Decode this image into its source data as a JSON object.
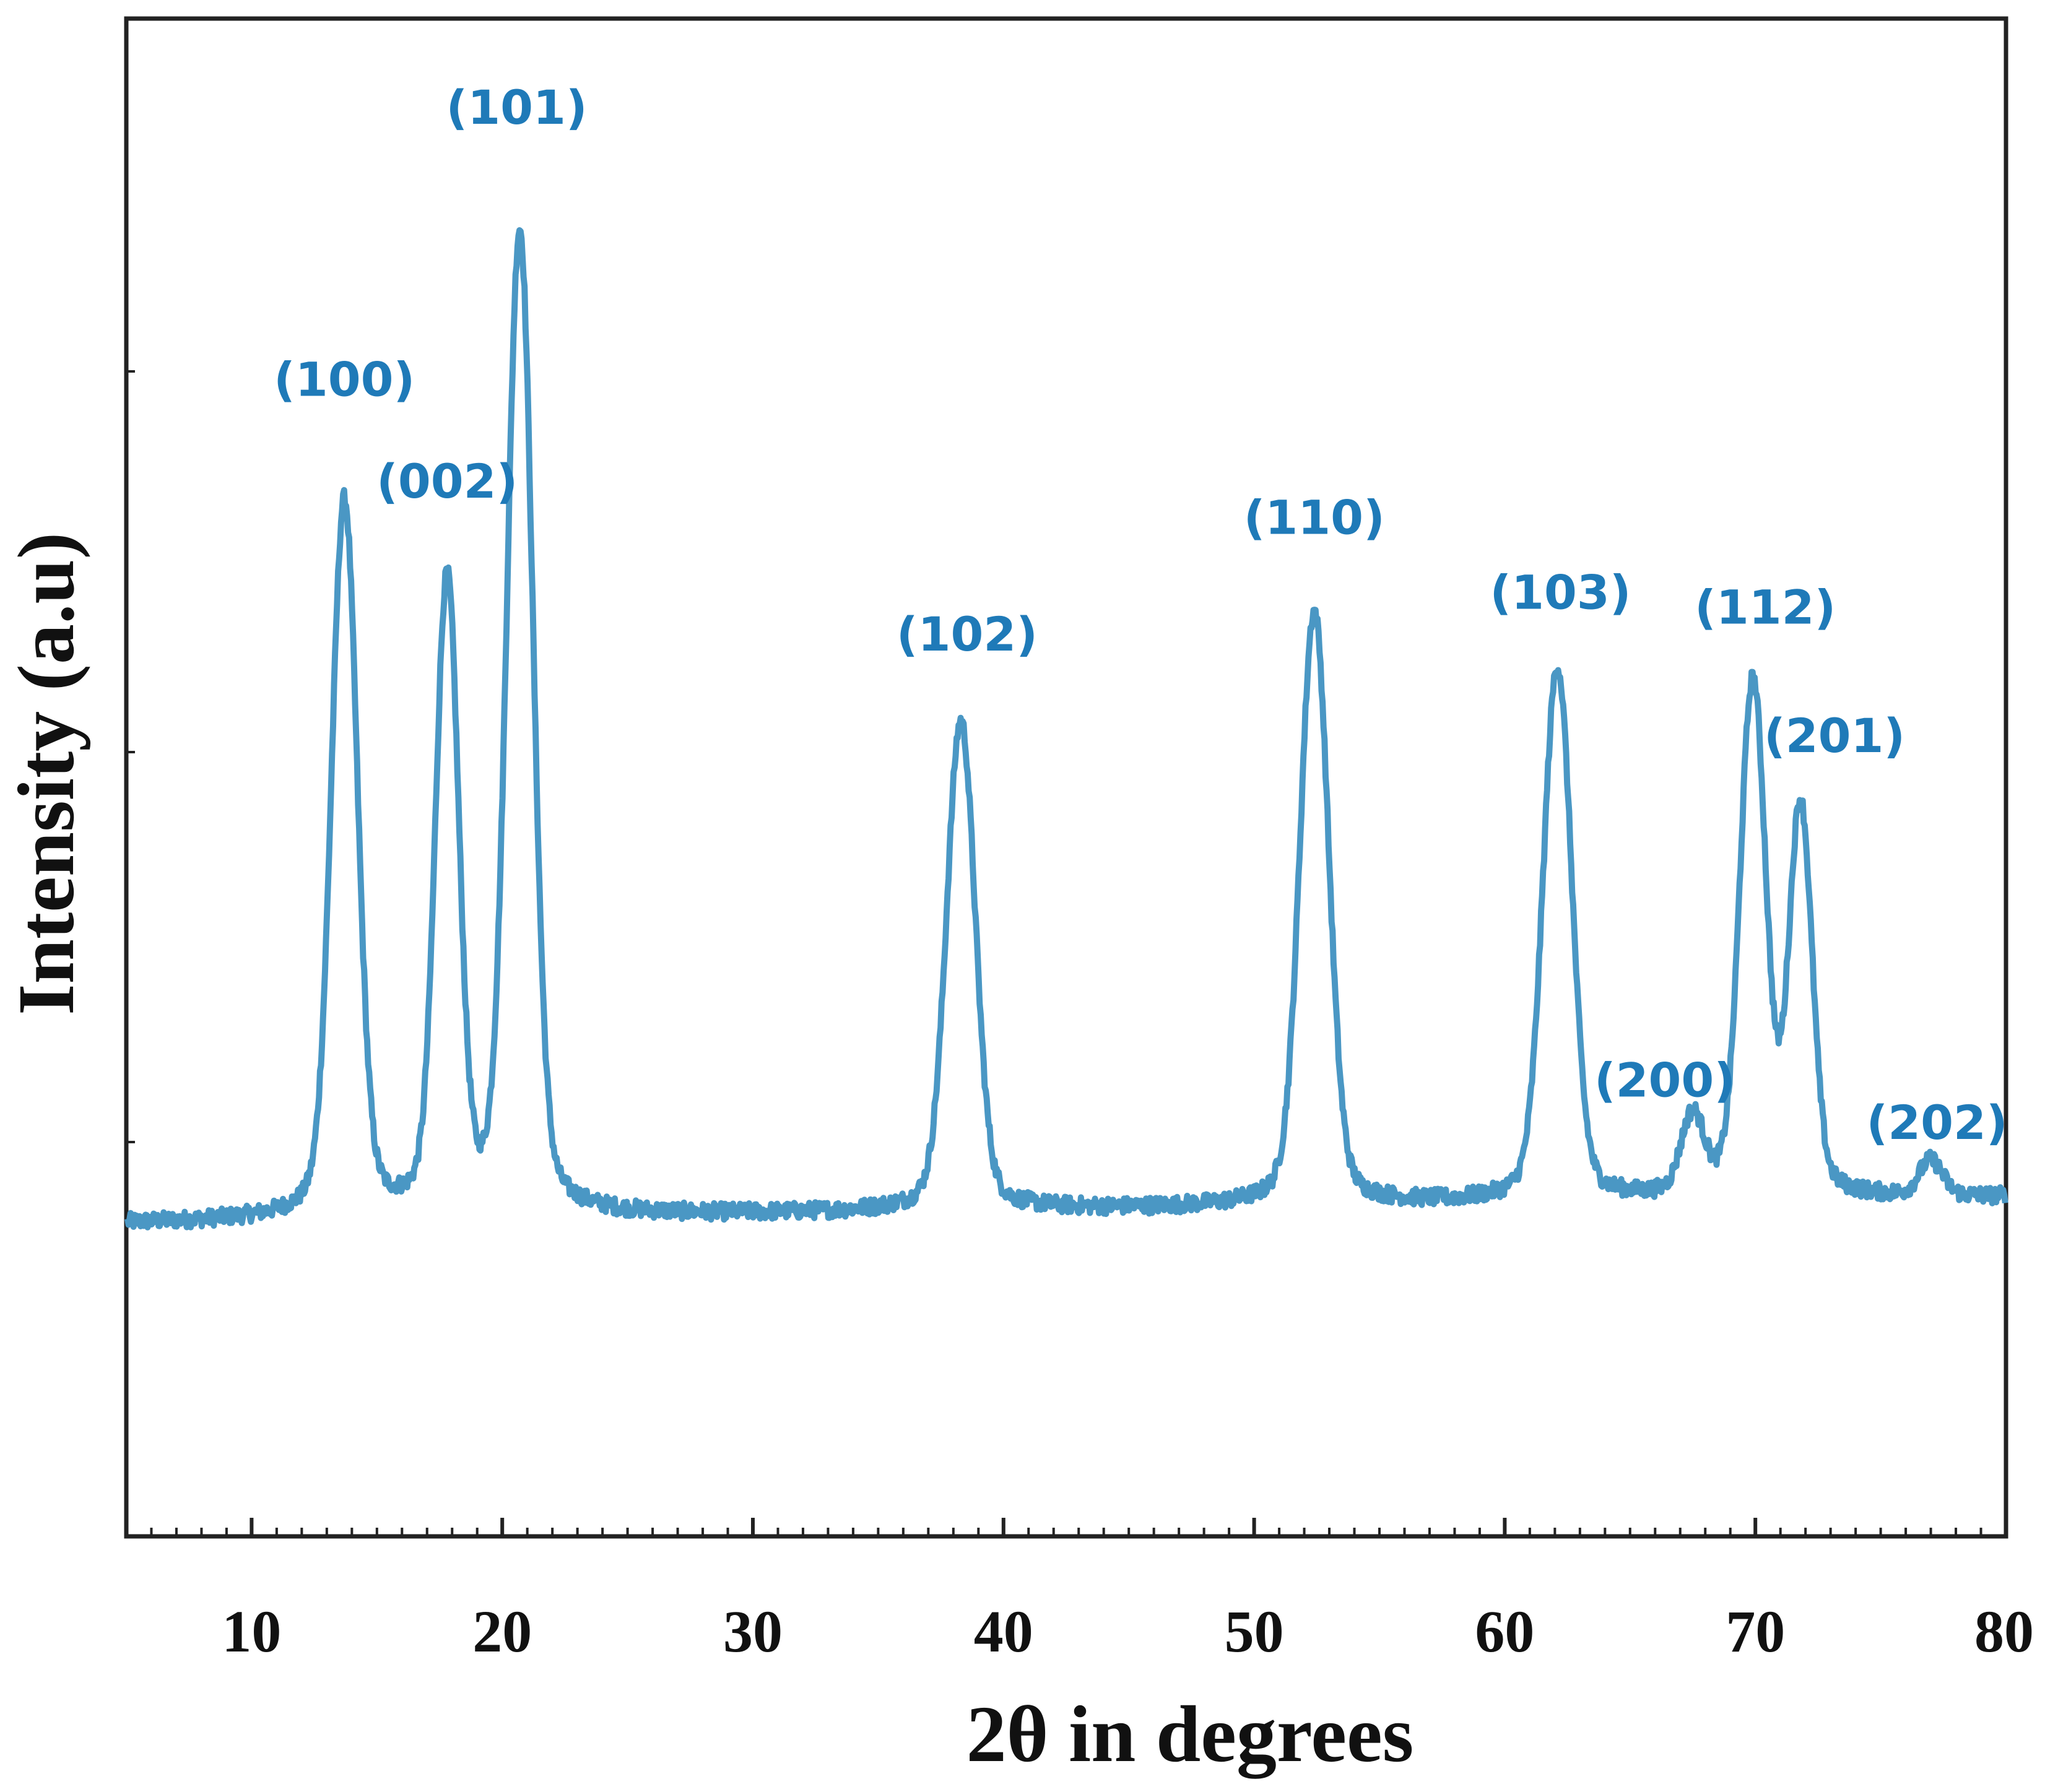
{
  "chart_data": {
    "type": "line",
    "title": "",
    "xlabel": "2θ in degrees",
    "ylabel": "Intensity (a.u)",
    "xlim": [
      5,
      80
    ],
    "ylim": [
      0,
      100
    ],
    "x_ticks": [
      10,
      20,
      30,
      40,
      50,
      60,
      70,
      80
    ],
    "x_tick_labels": [
      "10",
      "20",
      "30",
      "40",
      "50",
      "60",
      "70",
      "80"
    ],
    "y_tick_labels_shown": false,
    "grid": false,
    "legend": false,
    "series_color": "#4a97c4",
    "label_color": "#1f7ab8",
    "baseline": {
      "start": 11.0,
      "end": 13.2
    },
    "peaks": [
      {
        "label": "(100)",
        "x": 13.7,
        "height": 76.0,
        "width": 0.5
      },
      {
        "label": "(002)",
        "x": 17.8,
        "height": 68.0,
        "width": 0.45
      },
      {
        "label": "(101)",
        "x": 20.7,
        "height": 100.0,
        "width": 0.5
      },
      {
        "label": "(102)",
        "x": 38.3,
        "height": 55.5,
        "width": 0.55
      },
      {
        "label": "(110)",
        "x": 52.4,
        "height": 65.0,
        "width": 0.55
      },
      {
        "label": "(103)",
        "x": 62.1,
        "height": 59.5,
        "width": 0.55
      },
      {
        "label": "(200)",
        "x": 67.5,
        "height": 18.0,
        "width": 0.45
      },
      {
        "label": "(112)",
        "x": 69.9,
        "height": 57.5,
        "width": 0.5
      },
      {
        "label": "(201)",
        "x": 71.8,
        "height": 46.0,
        "width": 0.45
      },
      {
        "label": "(202)",
        "x": 77.0,
        "height": 14.2,
        "width": 0.45
      }
    ]
  }
}
